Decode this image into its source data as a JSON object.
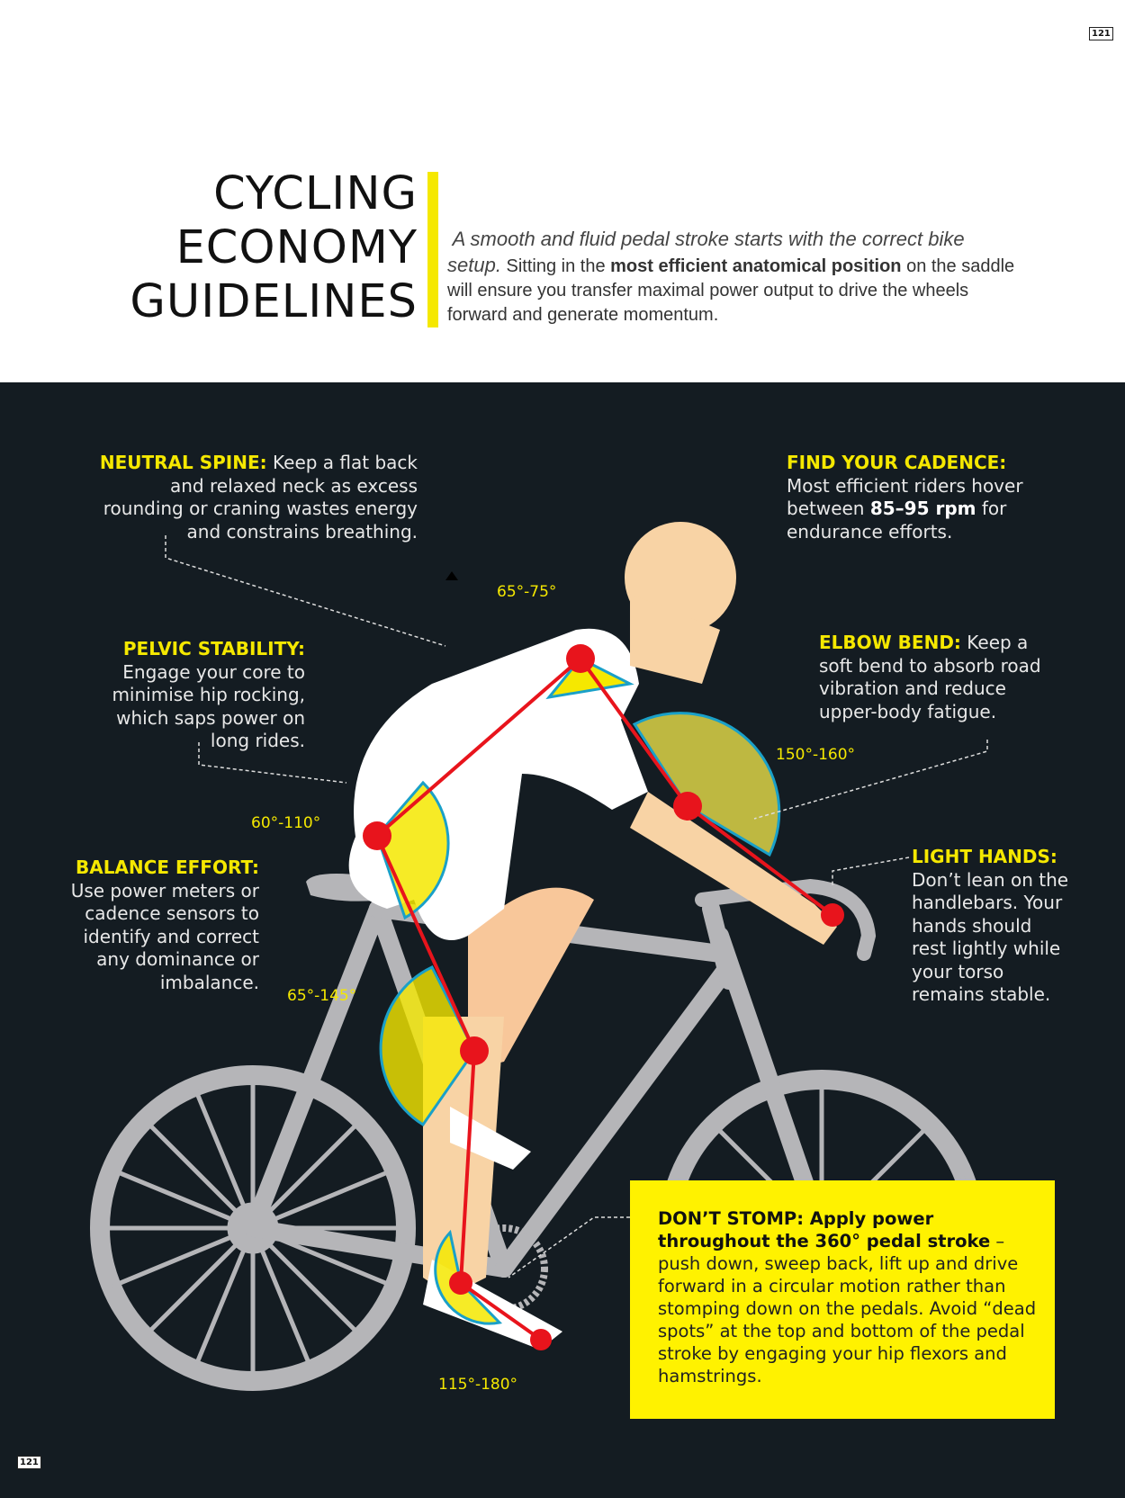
{
  "page_number": "121",
  "header": {
    "title_lines": [
      "CYCLING",
      "ECONOMY",
      "GUIDELINES"
    ],
    "intro_italic": "A smooth and fluid pedal stroke starts with the correct bike setup.",
    "intro_pre": " Sitting in the ",
    "intro_bold": "most efficient anatomical position",
    "intro_post": " on the saddle will ensure you transfer maximal power output to drive the wheels forward and generate momentum."
  },
  "tips": {
    "neutral_spine": {
      "heading": "NEUTRAL SPINE:",
      "text": " Keep a flat back and relaxed neck as excess rounding or craning wastes energy and constrains breathing."
    },
    "cadence": {
      "heading": "FIND YOUR CADENCE:",
      "pre": " Most efficient riders hover between ",
      "bold": "85–95 rpm",
      "post": " for endurance efforts."
    },
    "pelvic": {
      "heading": "PELVIC STABILITY:",
      "text": " Engage your core to minimise hip rocking, which saps power on long rides."
    },
    "elbow": {
      "heading": "ELBOW BEND:",
      "text": " Keep a soft bend to absorb road vibration and reduce upper-body fatigue."
    },
    "balance": {
      "heading": "BALANCE EFFORT:",
      "text": " Use power meters or cadence sensors to identify and correct any dominance or imbalance."
    },
    "hands": {
      "heading": "LIGHT HANDS:",
      "text": " Don’t lean on the handlebars. Your hands should rest lightly while your torso remains stable."
    },
    "stomp": {
      "heading": "DON’T STOMP:  Apply power throughout the 360° pedal stroke",
      "text": " – push down, sweep back, lift up and drive forward in a circular motion rather than stomping down on the pedals. Avoid “dead spots” at the top and bottom of the pedal stroke by engaging your hip flexors and hamstrings."
    }
  },
  "angles": {
    "shoulder": "65°-75°",
    "elbow": "150°-160°",
    "hip": "60°-110°",
    "knee": "65°-145°",
    "ankle": "115°-180°"
  },
  "colors": {
    "background": "#141c22",
    "accent_yellow": "#f5e800",
    "joint_red": "#e8141c",
    "bike_grey": "#b5b5b8",
    "skin": "#f8d3a5"
  }
}
